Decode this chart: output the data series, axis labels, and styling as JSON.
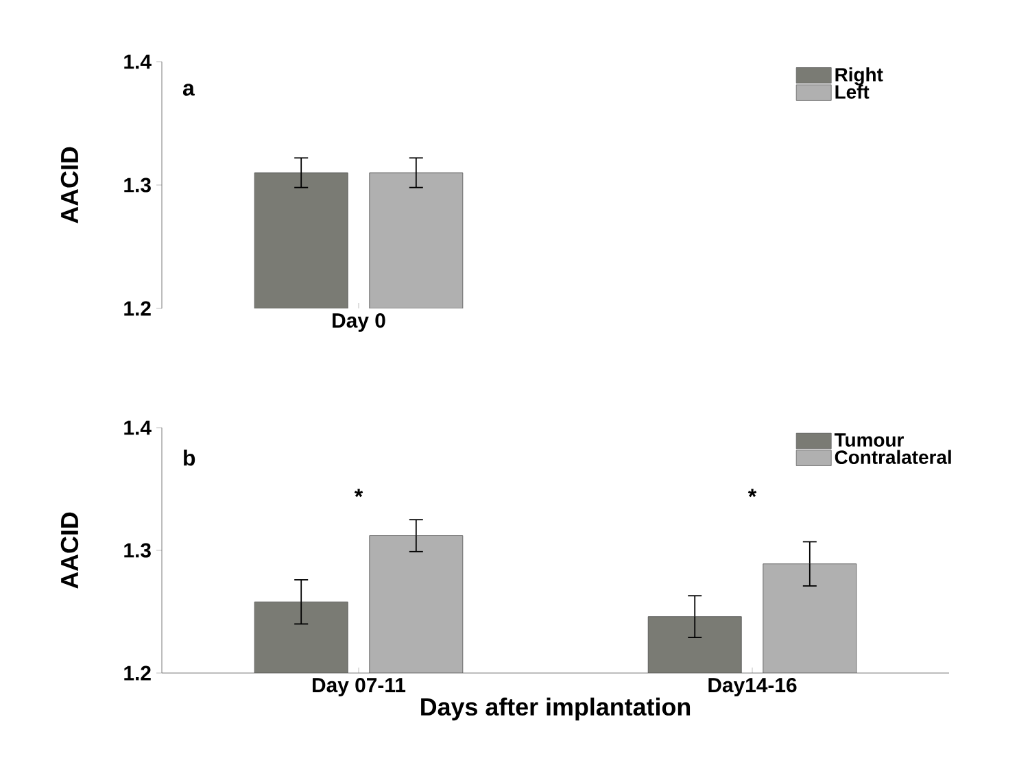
{
  "chart_data": [
    {
      "type": "bar",
      "categories": [
        "Day 0"
      ],
      "ylabel": "AACID",
      "ylim": [
        1.2,
        1.4
      ],
      "yticks": [
        1.2,
        1.3,
        1.4
      ],
      "legend": "top right",
      "grid": false,
      "annotations": [
        "a"
      ],
      "series": [
        {
          "name": "Right",
          "color": "#7a7b74",
          "values": [
            1.31
          ],
          "errors": [
            0.012
          ]
        },
        {
          "name": "Left",
          "color": "#b0b0b0",
          "values": [
            1.31
          ],
          "errors": [
            0.012
          ]
        }
      ]
    },
    {
      "type": "bar",
      "categories": [
        "Day 07-11",
        "Day14-16"
      ],
      "xlabel": "Days after implantation",
      "ylabel": "AACID",
      "ylim": [
        1.2,
        1.4
      ],
      "yticks": [
        1.2,
        1.3,
        1.4
      ],
      "legend": "top right",
      "grid": false,
      "annotations": [
        "b",
        "*",
        "*"
      ],
      "series": [
        {
          "name": "Tumour",
          "color": "#7a7b74",
          "values": [
            1.258,
            1.246
          ],
          "errors": [
            0.018,
            0.017
          ]
        },
        {
          "name": "Contralateral",
          "color": "#b0b0b0",
          "values": [
            1.312,
            1.289
          ],
          "errors": [
            0.013,
            0.018
          ]
        }
      ]
    }
  ]
}
